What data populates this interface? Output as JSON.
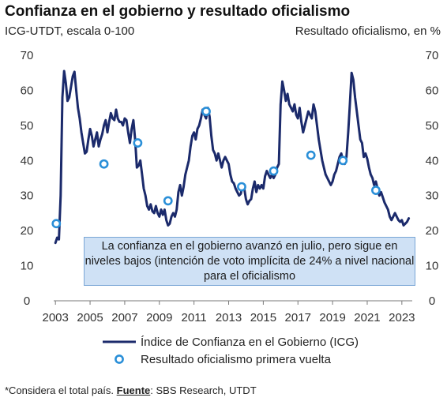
{
  "header": {
    "title": "Confianza en el gobierno y resultado oficialismo",
    "left_axis_label": "ICG-UTDT, escala 0-100",
    "right_axis_label": "Resultado oficialismo, en %"
  },
  "annotation": {
    "text": "La confianza en el gobierno avanzó en julio, pero sigue en niveles bajos (intención de voto implícita de 24% a nivel nacional para el oficialismo"
  },
  "footnote": {
    "prefix": "*Considera el total país. ",
    "source_label": "Fuente",
    "source_text": ": SBS Research, UTDT"
  },
  "chart_data": {
    "type": "line",
    "title": "Confianza en el gobierno y resultado oficialismo",
    "ylabel_left": "ICG-UTDT, escala 0-100",
    "ylabel_right": "Resultado oficialismo, en %",
    "ylim": [
      0,
      70
    ],
    "y_ticks": [
      0,
      10,
      20,
      30,
      40,
      50,
      60,
      70
    ],
    "xlim": [
      2002.9,
      2023.6
    ],
    "x_ticks": [
      2003,
      2005,
      2007,
      2009,
      2011,
      2013,
      2015,
      2017,
      2019,
      2021,
      2023
    ],
    "grid": false,
    "legend_placement": "bottom",
    "series": [
      {
        "name": "Índice de Confianza en el Gobierno (ICG)",
        "kind": "line",
        "color": "#1b2a6b",
        "points": [
          [
            2003.0,
            16.5
          ],
          [
            2003.1,
            18.0
          ],
          [
            2003.2,
            17.5
          ],
          [
            2003.3,
            30.0
          ],
          [
            2003.4,
            58.0
          ],
          [
            2003.5,
            65.5
          ],
          [
            2003.6,
            62.0
          ],
          [
            2003.7,
            57.0
          ],
          [
            2003.8,
            58.0
          ],
          [
            2003.9,
            61.0
          ],
          [
            2004.0,
            64.0
          ],
          [
            2004.1,
            65.3
          ],
          [
            2004.2,
            60.0
          ],
          [
            2004.3,
            55.0
          ],
          [
            2004.4,
            52.0
          ],
          [
            2004.5,
            48.0
          ],
          [
            2004.6,
            45.0
          ],
          [
            2004.7,
            42.0
          ],
          [
            2004.8,
            42.5
          ],
          [
            2004.9,
            46.0
          ],
          [
            2005.0,
            49.0
          ],
          [
            2005.1,
            47.0
          ],
          [
            2005.2,
            44.0
          ],
          [
            2005.3,
            46.0
          ],
          [
            2005.4,
            48.0
          ],
          [
            2005.5,
            44.0
          ],
          [
            2005.6,
            46.0
          ],
          [
            2005.7,
            47.5
          ],
          [
            2005.8,
            50.0
          ],
          [
            2005.9,
            51.5
          ],
          [
            2006.0,
            48.0
          ],
          [
            2006.1,
            51.0
          ],
          [
            2006.2,
            53.5
          ],
          [
            2006.3,
            52.0
          ],
          [
            2006.4,
            51.5
          ],
          [
            2006.5,
            54.5
          ],
          [
            2006.6,
            52.0
          ],
          [
            2006.7,
            51.0
          ],
          [
            2006.8,
            51.0
          ],
          [
            2006.9,
            50.0
          ],
          [
            2007.0,
            52.0
          ],
          [
            2007.1,
            51.5
          ],
          [
            2007.2,
            48.0
          ],
          [
            2007.3,
            45.0
          ],
          [
            2007.4,
            49.0
          ],
          [
            2007.5,
            51.5
          ],
          [
            2007.6,
            46.0
          ],
          [
            2007.7,
            38.0
          ],
          [
            2007.8,
            38.5
          ],
          [
            2007.9,
            40.0
          ],
          [
            2008.0,
            36.0
          ],
          [
            2008.1,
            32.0
          ],
          [
            2008.2,
            30.0
          ],
          [
            2008.3,
            27.0
          ],
          [
            2008.4,
            26.0
          ],
          [
            2008.5,
            27.5
          ],
          [
            2008.6,
            25.5
          ],
          [
            2008.7,
            25.0
          ],
          [
            2008.8,
            27.0
          ],
          [
            2008.9,
            25.0
          ],
          [
            2009.0,
            24.0
          ],
          [
            2009.1,
            26.0
          ],
          [
            2009.2,
            24.5
          ],
          [
            2009.3,
            26.0
          ],
          [
            2009.4,
            23.0
          ],
          [
            2009.5,
            21.5
          ],
          [
            2009.6,
            22.0
          ],
          [
            2009.7,
            24.0
          ],
          [
            2009.8,
            25.0
          ],
          [
            2009.9,
            24.0
          ],
          [
            2010.0,
            26.0
          ],
          [
            2010.1,
            31.0
          ],
          [
            2010.2,
            33.0
          ],
          [
            2010.3,
            30.0
          ],
          [
            2010.4,
            32.5
          ],
          [
            2010.5,
            36.0
          ],
          [
            2010.6,
            38.0
          ],
          [
            2010.7,
            40.0
          ],
          [
            2010.8,
            44.0
          ],
          [
            2010.9,
            47.0
          ],
          [
            2011.0,
            48.0
          ],
          [
            2011.1,
            46.0
          ],
          [
            2011.2,
            49.0
          ],
          [
            2011.3,
            50.0
          ],
          [
            2011.4,
            52.0
          ],
          [
            2011.5,
            54.5
          ],
          [
            2011.6,
            53.0
          ],
          [
            2011.7,
            52.0
          ],
          [
            2011.8,
            55.0
          ],
          [
            2011.9,
            52.5
          ],
          [
            2012.0,
            47.0
          ],
          [
            2012.1,
            43.0
          ],
          [
            2012.2,
            42.0
          ],
          [
            2012.3,
            40.0
          ],
          [
            2012.4,
            42.0
          ],
          [
            2012.5,
            40.0
          ],
          [
            2012.6,
            38.0
          ],
          [
            2012.7,
            40.0
          ],
          [
            2012.8,
            41.0
          ],
          [
            2012.9,
            40.0
          ],
          [
            2013.0,
            39.0
          ],
          [
            2013.1,
            36.0
          ],
          [
            2013.2,
            34.0
          ],
          [
            2013.3,
            33.5
          ],
          [
            2013.4,
            32.0
          ],
          [
            2013.5,
            31.0
          ],
          [
            2013.6,
            30.0
          ],
          [
            2013.7,
            30.5
          ],
          [
            2013.8,
            33.0
          ],
          [
            2013.9,
            32.0
          ],
          [
            2014.0,
            29.0
          ],
          [
            2014.1,
            27.5
          ],
          [
            2014.2,
            28.5
          ],
          [
            2014.3,
            29.0
          ],
          [
            2014.4,
            32.0
          ],
          [
            2014.5,
            34.0
          ],
          [
            2014.6,
            31.0
          ],
          [
            2014.7,
            33.0
          ],
          [
            2014.8,
            32.0
          ],
          [
            2014.9,
            33.0
          ],
          [
            2015.0,
            32.0
          ],
          [
            2015.1,
            35.5
          ],
          [
            2015.2,
            37.0
          ],
          [
            2015.3,
            36.0
          ],
          [
            2015.4,
            35.0
          ],
          [
            2015.5,
            36.0
          ],
          [
            2015.6,
            35.0
          ],
          [
            2015.7,
            36.0
          ],
          [
            2015.8,
            38.0
          ],
          [
            2015.9,
            39.0
          ],
          [
            2016.0,
            56.0
          ],
          [
            2016.1,
            62.5
          ],
          [
            2016.2,
            60.0
          ],
          [
            2016.3,
            57.0
          ],
          [
            2016.4,
            59.0
          ],
          [
            2016.5,
            56.0
          ],
          [
            2016.6,
            55.0
          ],
          [
            2016.7,
            54.0
          ],
          [
            2016.8,
            56.0
          ],
          [
            2016.9,
            53.0
          ],
          [
            2017.0,
            52.0
          ],
          [
            2017.1,
            55.0
          ],
          [
            2017.2,
            51.0
          ],
          [
            2017.3,
            48.0
          ],
          [
            2017.4,
            50.0
          ],
          [
            2017.5,
            52.0
          ],
          [
            2017.6,
            54.0
          ],
          [
            2017.7,
            53.0
          ],
          [
            2017.8,
            52.0
          ],
          [
            2017.9,
            56.0
          ],
          [
            2018.0,
            54.0
          ],
          [
            2018.1,
            50.0
          ],
          [
            2018.2,
            46.0
          ],
          [
            2018.3,
            43.0
          ],
          [
            2018.4,
            40.0
          ],
          [
            2018.5,
            38.0
          ],
          [
            2018.6,
            36.0
          ],
          [
            2018.7,
            35.0
          ],
          [
            2018.8,
            34.0
          ],
          [
            2018.9,
            33.0
          ],
          [
            2019.0,
            34.0
          ],
          [
            2019.1,
            36.0
          ],
          [
            2019.2,
            37.0
          ],
          [
            2019.3,
            39.0
          ],
          [
            2019.4,
            41.0
          ],
          [
            2019.5,
            42.0
          ],
          [
            2019.6,
            40.0
          ],
          [
            2019.7,
            39.0
          ],
          [
            2019.8,
            41.0
          ],
          [
            2019.9,
            48.0
          ],
          [
            2020.0,
            56.0
          ],
          [
            2020.1,
            65.0
          ],
          [
            2020.2,
            63.0
          ],
          [
            2020.3,
            58.0
          ],
          [
            2020.4,
            54.0
          ],
          [
            2020.5,
            50.0
          ],
          [
            2020.6,
            46.0
          ],
          [
            2020.7,
            45.0
          ],
          [
            2020.8,
            41.0
          ],
          [
            2020.9,
            42.0
          ],
          [
            2021.0,
            40.5
          ],
          [
            2021.1,
            38.0
          ],
          [
            2021.2,
            36.0
          ],
          [
            2021.3,
            35.0
          ],
          [
            2021.4,
            33.0
          ],
          [
            2021.5,
            34.0
          ],
          [
            2021.6,
            32.0
          ],
          [
            2021.7,
            30.0
          ],
          [
            2021.8,
            31.0
          ],
          [
            2021.9,
            29.5
          ],
          [
            2022.0,
            28.0
          ],
          [
            2022.1,
            27.0
          ],
          [
            2022.2,
            26.0
          ],
          [
            2022.3,
            24.0
          ],
          [
            2022.4,
            23.0
          ],
          [
            2022.5,
            24.0
          ],
          [
            2022.6,
            25.0
          ],
          [
            2022.7,
            24.0
          ],
          [
            2022.8,
            23.0
          ],
          [
            2022.9,
            22.5
          ],
          [
            2023.0,
            23.0
          ],
          [
            2023.1,
            21.5
          ],
          [
            2023.2,
            22.0
          ],
          [
            2023.3,
            22.5
          ],
          [
            2023.4,
            23.5
          ]
        ]
      },
      {
        "name": "Resultado oficialismo primera vuelta",
        "kind": "markers",
        "color": "#2a8fd8",
        "points": [
          [
            2003.05,
            22.0
          ],
          [
            2005.8,
            39.0
          ],
          [
            2007.75,
            45.0
          ],
          [
            2009.5,
            28.5
          ],
          [
            2011.7,
            54.0
          ],
          [
            2013.75,
            32.5
          ],
          [
            2015.6,
            37.0
          ],
          [
            2017.75,
            41.5
          ],
          [
            2019.6,
            40.0
          ],
          [
            2021.5,
            31.5
          ]
        ]
      }
    ]
  }
}
